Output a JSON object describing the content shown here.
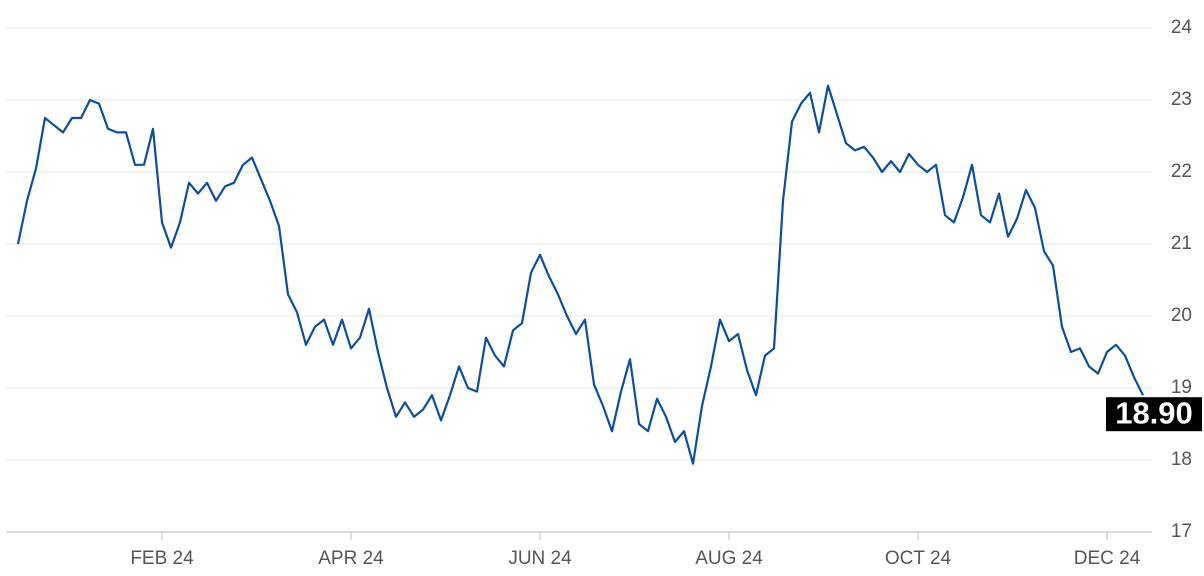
{
  "chart_data": {
    "type": "line",
    "categories": [
      null,
      null,
      null,
      null,
      null,
      null,
      null,
      null,
      null,
      null,
      null,
      null,
      null,
      null,
      null,
      null,
      "FEB 24",
      null,
      null,
      null,
      null,
      null,
      null,
      null,
      null,
      null,
      null,
      null,
      null,
      null,
      null,
      null,
      null,
      null,
      null,
      null,
      null,
      "APR 24",
      null,
      null,
      null,
      null,
      null,
      null,
      null,
      null,
      null,
      null,
      null,
      null,
      null,
      null,
      null,
      null,
      null,
      null,
      null,
      null,
      "JUN 24",
      null,
      null,
      null,
      null,
      null,
      null,
      null,
      null,
      null,
      null,
      null,
      null,
      null,
      null,
      null,
      null,
      null,
      null,
      null,
      null,
      "AUG 24",
      null,
      null,
      null,
      null,
      null,
      null,
      null,
      null,
      null,
      null,
      null,
      null,
      null,
      null,
      null,
      null,
      null,
      null,
      null,
      null,
      "OCT 24",
      null,
      null,
      null,
      null,
      null,
      null,
      null,
      null,
      null,
      null,
      null,
      null,
      null,
      null,
      null,
      null,
      null,
      null,
      null,
      null,
      "DEC 24",
      null,
      null,
      null,
      null
    ],
    "series": [
      {
        "color": "#0b4f9c",
        "values": [
          21.0,
          21.6,
          22.05,
          22.75,
          22.65,
          22.55,
          22.75,
          22.75,
          23.0,
          22.95,
          22.6,
          22.55,
          22.55,
          22.1,
          22.1,
          22.6,
          21.3,
          20.95,
          21.3,
          21.85,
          21.7,
          21.85,
          21.6,
          21.8,
          21.85,
          22.1,
          22.2,
          21.9,
          21.6,
          21.25,
          20.3,
          20.05,
          19.6,
          19.85,
          19.95,
          19.6,
          19.95,
          19.55,
          19.7,
          20.1,
          19.5,
          19.0,
          18.6,
          18.8,
          18.6,
          18.7,
          18.9,
          18.55,
          18.9,
          19.3,
          19.0,
          18.95,
          19.7,
          19.45,
          19.3,
          19.8,
          19.9,
          20.6,
          20.85,
          20.55,
          20.3,
          20.0,
          19.75,
          19.95,
          19.05,
          18.75,
          18.4,
          18.95,
          19.4,
          18.5,
          18.4,
          18.85,
          18.6,
          18.25,
          18.4,
          17.95,
          18.75,
          19.3,
          19.95,
          19.65,
          19.75,
          19.25,
          18.9,
          19.45,
          19.55,
          21.6,
          22.7,
          22.95,
          23.1,
          22.55,
          23.2,
          22.8,
          22.4,
          22.3,
          22.35,
          22.2,
          22.0,
          22.15,
          22.0,
          22.25,
          22.1,
          22.0,
          22.1,
          21.4,
          21.3,
          21.65,
          22.1,
          21.4,
          21.3,
          21.7,
          21.1,
          21.35,
          21.75,
          21.5,
          20.9,
          20.7,
          19.85,
          19.5,
          19.55,
          19.3,
          19.2,
          19.5,
          19.6,
          19.45,
          19.15,
          18.9
        ]
      }
    ],
    "last_value": {
      "value": 18.9,
      "label": "18.90"
    },
    "ylim": [
      17,
      24
    ],
    "yticks": [
      17,
      18,
      19,
      20,
      21,
      22,
      23,
      24
    ],
    "grid": true
  }
}
